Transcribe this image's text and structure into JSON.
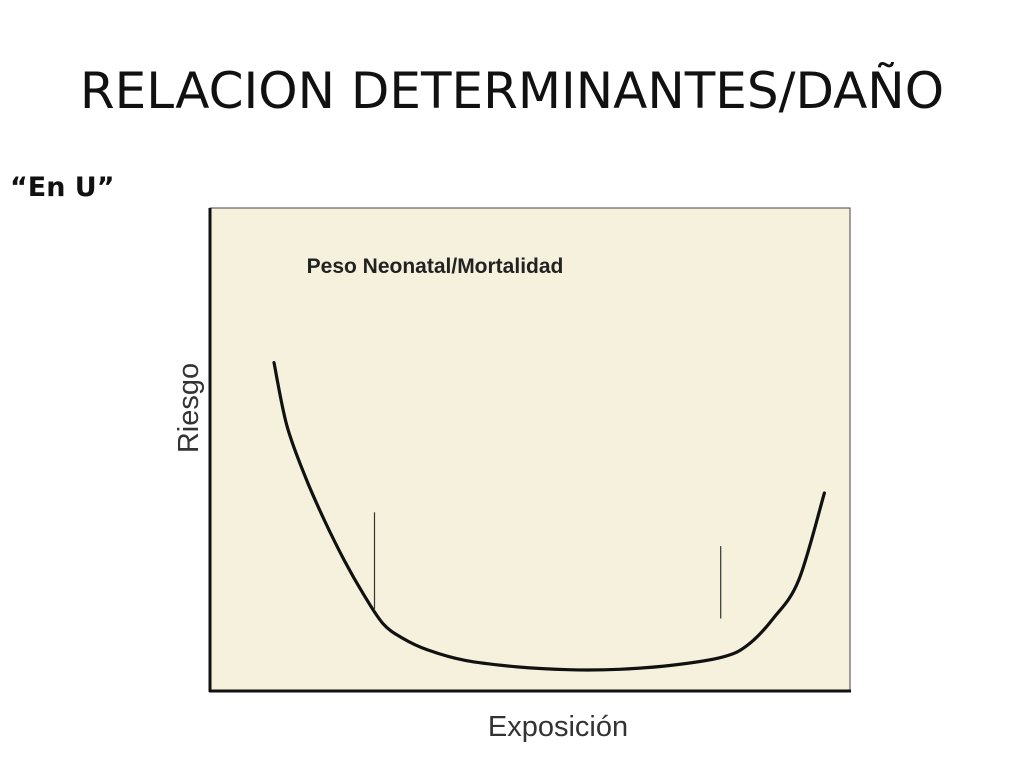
{
  "slide": {
    "title": "RELACION DETERMINANTES/DAÑO",
    "subtitle": "“En U”"
  },
  "chart_data": {
    "type": "line",
    "title": "Peso Neonatal/Mortalidad",
    "xlabel": "Exposición",
    "ylabel": "Riesgo",
    "xlim": [
      0,
      100
    ],
    "ylim": [
      0,
      100
    ],
    "grid": false,
    "legend": "none",
    "series": [
      {
        "values_x": [
          10,
          12,
          15,
          18,
          21,
          24,
          27,
          30,
          34,
          40,
          48,
          56,
          64,
          72,
          80,
          84,
          88,
          92,
          96
        ],
        "values_y": [
          68,
          55,
          44,
          35,
          27,
          20,
          14,
          11,
          8.5,
          6.3,
          5,
          4.4,
          4.5,
          5.3,
          7,
          9.5,
          15,
          23,
          41
        ],
        "color": "#111111"
      }
    ],
    "markers": [
      {
        "x": 25.7,
        "y_range": [
          17,
          37
        ]
      },
      {
        "x": 79.8,
        "y_range": [
          15,
          30
        ]
      }
    ],
    "plot_background": "#f5f1dc"
  }
}
